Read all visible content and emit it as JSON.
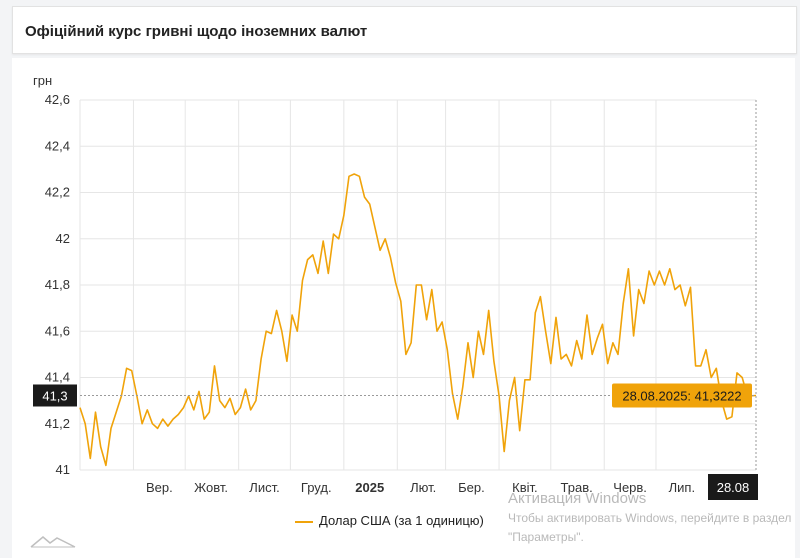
{
  "header": {
    "title": "Офіційний курс гривні щодо іноземних валют"
  },
  "chart_data": {
    "type": "line",
    "ylabel": "грн",
    "ylim": [
      41,
      42.6
    ],
    "yticks": [
      41,
      41.2,
      41.4,
      41.6,
      41.8,
      42,
      42.2,
      42.4,
      42.6
    ],
    "ytick_labels": [
      "41",
      "41,2",
      "41,4",
      "41,6",
      "41,8",
      "42",
      "42,2",
      "42,4",
      "42,6"
    ],
    "x_range": [
      "2024-08-01",
      "2025-08-28"
    ],
    "xticks": [
      {
        "label": "Вер.",
        "date": "2024-09-01"
      },
      {
        "label": "Жовт.",
        "date": "2024-10-01"
      },
      {
        "label": "Лист.",
        "date": "2024-11-01"
      },
      {
        "label": "Груд.",
        "date": "2024-12-01"
      },
      {
        "label": "2025",
        "date": "2025-01-01",
        "bold": true
      },
      {
        "label": "Лют.",
        "date": "2025-02-01"
      },
      {
        "label": "Бер.",
        "date": "2025-03-01"
      },
      {
        "label": "Квіт.",
        "date": "2025-04-01"
      },
      {
        "label": "Трав.",
        "date": "2025-05-01"
      },
      {
        "label": "Черв.",
        "date": "2025-06-01"
      },
      {
        "label": "Лип.",
        "date": "2025-07-01"
      }
    ],
    "series": [
      {
        "name": "Долар США (за 1 одиницю)",
        "color": "#f0a30a",
        "points": [
          [
            "2024-08-01",
            41.27
          ],
          [
            "2024-08-04",
            41.2
          ],
          [
            "2024-08-07",
            41.05
          ],
          [
            "2024-08-10",
            41.25
          ],
          [
            "2024-08-13",
            41.1
          ],
          [
            "2024-08-16",
            41.02
          ],
          [
            "2024-08-19",
            41.18
          ],
          [
            "2024-08-22",
            41.25
          ],
          [
            "2024-08-25",
            41.32
          ],
          [
            "2024-08-28",
            41.44
          ],
          [
            "2024-08-31",
            41.43
          ],
          [
            "2024-09-03",
            41.32
          ],
          [
            "2024-09-06",
            41.2
          ],
          [
            "2024-09-09",
            41.26
          ],
          [
            "2024-09-12",
            41.2
          ],
          [
            "2024-09-15",
            41.18
          ],
          [
            "2024-09-18",
            41.22
          ],
          [
            "2024-09-21",
            41.19
          ],
          [
            "2024-09-24",
            41.22
          ],
          [
            "2024-09-27",
            41.24
          ],
          [
            "2024-09-30",
            41.27
          ],
          [
            "2024-10-03",
            41.32
          ],
          [
            "2024-10-06",
            41.26
          ],
          [
            "2024-10-09",
            41.34
          ],
          [
            "2024-10-12",
            41.22
          ],
          [
            "2024-10-15",
            41.25
          ],
          [
            "2024-10-18",
            41.45
          ],
          [
            "2024-10-21",
            41.3
          ],
          [
            "2024-10-24",
            41.27
          ],
          [
            "2024-10-27",
            41.31
          ],
          [
            "2024-10-30",
            41.24
          ],
          [
            "2024-11-02",
            41.27
          ],
          [
            "2024-11-05",
            41.35
          ],
          [
            "2024-11-08",
            41.26
          ],
          [
            "2024-11-11",
            41.3
          ],
          [
            "2024-11-14",
            41.48
          ],
          [
            "2024-11-17",
            41.6
          ],
          [
            "2024-11-20",
            41.59
          ],
          [
            "2024-11-23",
            41.69
          ],
          [
            "2024-11-26",
            41.6
          ],
          [
            "2024-11-29",
            41.47
          ],
          [
            "2024-12-02",
            41.67
          ],
          [
            "2024-12-05",
            41.6
          ],
          [
            "2024-12-08",
            41.82
          ],
          [
            "2024-12-11",
            41.91
          ],
          [
            "2024-12-14",
            41.93
          ],
          [
            "2024-12-17",
            41.85
          ],
          [
            "2024-12-20",
            41.99
          ],
          [
            "2024-12-23",
            41.85
          ],
          [
            "2024-12-26",
            42.02
          ],
          [
            "2024-12-29",
            42.0
          ],
          [
            "2025-01-01",
            42.1
          ],
          [
            "2025-01-04",
            42.27
          ],
          [
            "2025-01-07",
            42.28
          ],
          [
            "2025-01-10",
            42.27
          ],
          [
            "2025-01-13",
            42.18
          ],
          [
            "2025-01-16",
            42.15
          ],
          [
            "2025-01-19",
            42.05
          ],
          [
            "2025-01-22",
            41.95
          ],
          [
            "2025-01-25",
            42.0
          ],
          [
            "2025-01-28",
            41.92
          ],
          [
            "2025-01-31",
            41.81
          ],
          [
            "2025-02-03",
            41.73
          ],
          [
            "2025-02-06",
            41.5
          ],
          [
            "2025-02-09",
            41.55
          ],
          [
            "2025-02-12",
            41.8
          ],
          [
            "2025-02-15",
            41.8
          ],
          [
            "2025-02-18",
            41.65
          ],
          [
            "2025-02-21",
            41.78
          ],
          [
            "2025-02-24",
            41.6
          ],
          [
            "2025-02-27",
            41.64
          ],
          [
            "2025-03-02",
            41.52
          ],
          [
            "2025-03-05",
            41.33
          ],
          [
            "2025-03-08",
            41.22
          ],
          [
            "2025-03-11",
            41.36
          ],
          [
            "2025-03-14",
            41.55
          ],
          [
            "2025-03-17",
            41.4
          ],
          [
            "2025-03-20",
            41.6
          ],
          [
            "2025-03-23",
            41.5
          ],
          [
            "2025-03-26",
            41.69
          ],
          [
            "2025-03-29",
            41.47
          ],
          [
            "2025-04-01",
            41.32
          ],
          [
            "2025-04-04",
            41.08
          ],
          [
            "2025-04-07",
            41.3
          ],
          [
            "2025-04-10",
            41.4
          ],
          [
            "2025-04-13",
            41.17
          ],
          [
            "2025-04-16",
            41.39
          ],
          [
            "2025-04-19",
            41.39
          ],
          [
            "2025-04-22",
            41.68
          ],
          [
            "2025-04-25",
            41.75
          ],
          [
            "2025-04-28",
            41.6
          ],
          [
            "2025-05-01",
            41.46
          ],
          [
            "2025-05-04",
            41.66
          ],
          [
            "2025-05-07",
            41.48
          ],
          [
            "2025-05-10",
            41.5
          ],
          [
            "2025-05-13",
            41.45
          ],
          [
            "2025-05-16",
            41.56
          ],
          [
            "2025-05-19",
            41.48
          ],
          [
            "2025-05-22",
            41.67
          ],
          [
            "2025-05-25",
            41.5
          ],
          [
            "2025-05-28",
            41.57
          ],
          [
            "2025-05-31",
            41.63
          ],
          [
            "2025-06-03",
            41.46
          ],
          [
            "2025-06-06",
            41.55
          ],
          [
            "2025-06-09",
            41.5
          ],
          [
            "2025-06-12",
            41.72
          ],
          [
            "2025-06-15",
            41.87
          ],
          [
            "2025-06-18",
            41.58
          ],
          [
            "2025-06-21",
            41.78
          ],
          [
            "2025-06-24",
            41.72
          ],
          [
            "2025-06-27",
            41.86
          ],
          [
            "2025-06-30",
            41.8
          ],
          [
            "2025-07-03",
            41.86
          ],
          [
            "2025-07-06",
            41.8
          ],
          [
            "2025-07-09",
            41.87
          ],
          [
            "2025-07-12",
            41.78
          ],
          [
            "2025-07-15",
            41.8
          ],
          [
            "2025-07-18",
            41.71
          ],
          [
            "2025-07-21",
            41.79
          ],
          [
            "2025-07-24",
            41.45
          ],
          [
            "2025-07-27",
            41.45
          ],
          [
            "2025-07-30",
            41.52
          ],
          [
            "2025-08-02",
            41.4
          ],
          [
            "2025-08-05",
            41.44
          ],
          [
            "2025-08-08",
            41.3
          ],
          [
            "2025-08-11",
            41.22
          ],
          [
            "2025-08-14",
            41.23
          ],
          [
            "2025-08-17",
            41.42
          ],
          [
            "2025-08-20",
            41.4
          ],
          [
            "2025-08-23",
            41.32
          ],
          [
            "2025-08-28",
            41.3222
          ]
        ]
      }
    ],
    "crosshair_value_label": "41,3",
    "crosshair_date_label": "28.08",
    "tooltip": "28.08.2025: 41,3222",
    "grid": true,
    "legend_position": "bottom"
  },
  "watermark": {
    "title": "Активация Windows",
    "line1": "Чтобы активировать Windows, перейдите в раздел",
    "line2": "\"Параметры\"."
  }
}
